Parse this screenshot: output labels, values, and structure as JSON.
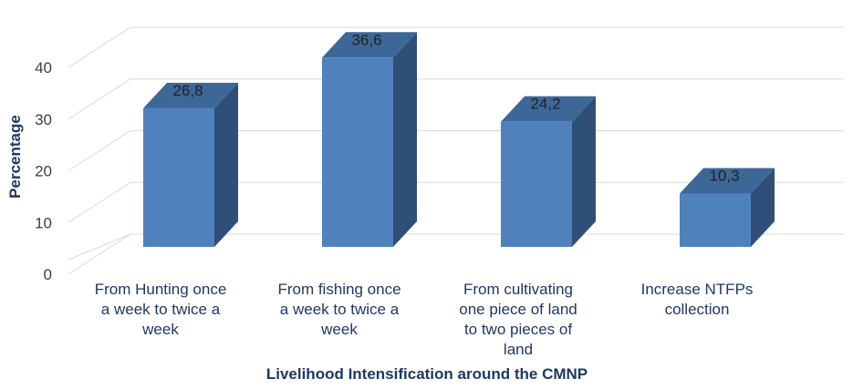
{
  "chart_data": {
    "type": "bar",
    "style": "3d-clustered-column",
    "title": "",
    "xlabel": "Livelihood Intensification around the CMNP",
    "ylabel": "Percentage",
    "ylim": [
      0,
      40
    ],
    "yticks": [
      0,
      10,
      20,
      30,
      40
    ],
    "grid": true,
    "legend": "none",
    "categories": [
      [
        "From Hunting once",
        "a week to twice a",
        "week"
      ],
      [
        "From fishing once",
        "a week to  twice a",
        "week"
      ],
      [
        "From cultivating",
        "one piece of land",
        "to two pieces of",
        "land"
      ],
      [
        "Increase NTFPs",
        "collection"
      ]
    ],
    "values": [
      26.8,
      36.6,
      24.2,
      10.3
    ],
    "data_labels": [
      "26,8",
      "36,6",
      "24,2",
      "10,3"
    ],
    "colors": {
      "bar_front": "#4f81bd",
      "bar_side": "#2f4f78",
      "bar_top": "#3d6797",
      "grid": "#d9d9d9",
      "axis_title": "#1f3864"
    }
  }
}
